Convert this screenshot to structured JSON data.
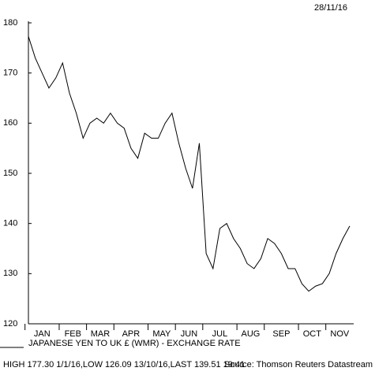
{
  "chart_data": {
    "type": "line",
    "date": "28/11/16",
    "title": "JAPANESE YEN TO UK £ (WMR) - EXCHANGE RATE",
    "footer": "HIGH 177.30 1/1/16,LOW 126.09 13/10/16,LAST 139.51 19:41",
    "source": "Source: Thomson Reuters Datastream",
    "categories": [
      "JAN",
      null,
      null,
      null,
      null,
      "FEB",
      null,
      null,
      null,
      "MAR",
      null,
      null,
      null,
      "APR",
      null,
      null,
      null,
      null,
      "MAY",
      null,
      null,
      null,
      "JUN",
      null,
      null,
      null,
      "JUL",
      null,
      null,
      null,
      null,
      "AUG",
      null,
      null,
      null,
      "SEP",
      null,
      null,
      null,
      null,
      "OCT",
      null,
      null,
      null,
      "NOV",
      null,
      null,
      null
    ],
    "values": [
      177.3,
      173,
      170,
      167,
      169,
      172,
      166,
      162,
      157,
      160,
      161,
      160,
      162,
      160,
      159,
      155,
      153,
      158,
      157,
      157,
      160,
      162,
      156,
      151,
      147,
      156,
      134,
      131,
      139,
      140,
      137,
      135,
      132,
      131,
      133,
      137,
      136,
      134,
      131,
      131,
      128,
      126.5,
      127.5,
      128,
      130,
      134,
      137,
      139.5
    ],
    "color": "#000000",
    "ylim": [
      120,
      180
    ],
    "yticks": [
      120,
      130,
      140,
      150,
      160,
      170,
      180
    ]
  }
}
